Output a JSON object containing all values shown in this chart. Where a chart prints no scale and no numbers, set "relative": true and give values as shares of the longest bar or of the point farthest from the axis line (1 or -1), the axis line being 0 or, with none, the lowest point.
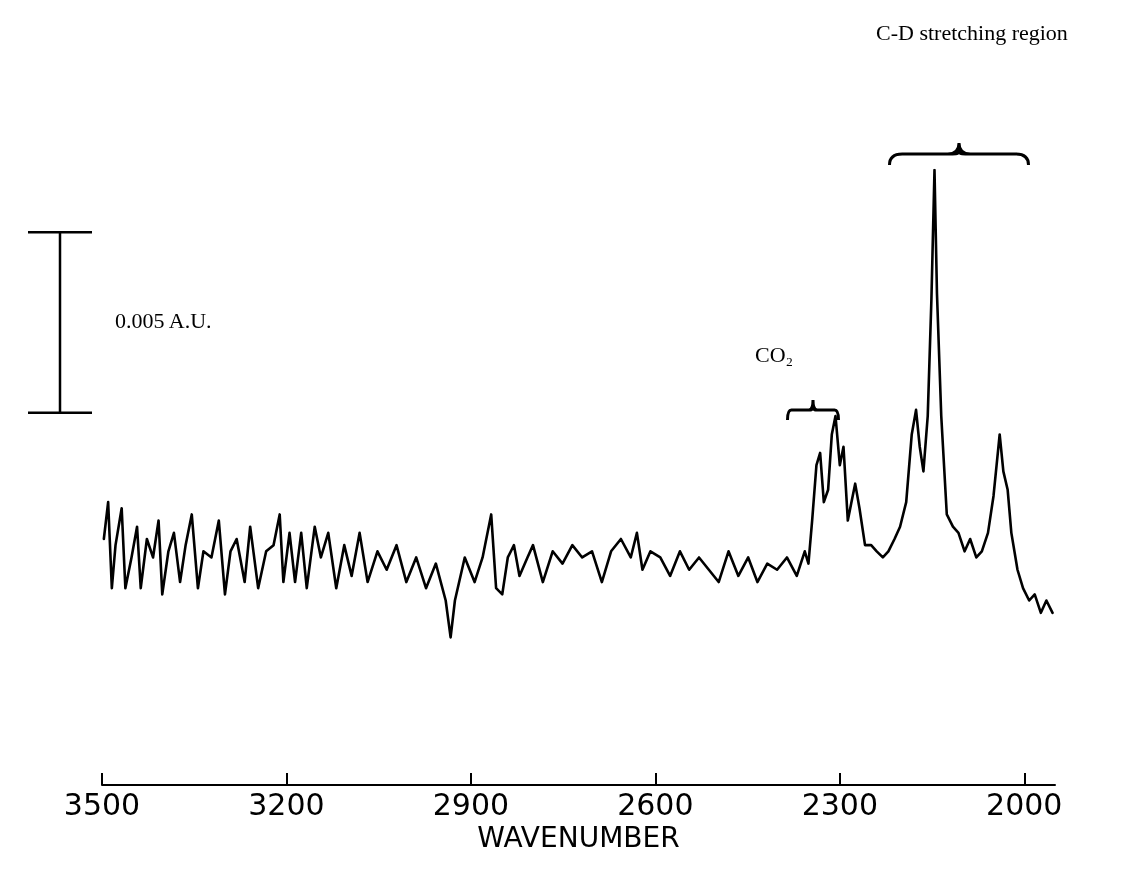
{
  "chart_data": {
    "type": "line",
    "relative": true,
    "xlabel": "WAVENUMBER",
    "xlim": [
      3500,
      1950
    ],
    "xticks": [
      3500,
      3200,
      2900,
      2600,
      2300,
      2000
    ],
    "grid": false,
    "marker": "none",
    "line_style": "solid",
    "annotations": [
      "0.005 A.U.",
      "CO₂",
      "C-D  stretching region"
    ],
    "series": [
      {
        "color": "#000000",
        "x": [
          3497,
          3490,
          3484,
          3478,
          3468,
          3462,
          3452,
          3443,
          3437,
          3427,
          3417,
          3408,
          3402,
          3392,
          3383,
          3373,
          3364,
          3354,
          3344,
          3335,
          3322,
          3310,
          3300,
          3291,
          3281,
          3268,
          3259,
          3246,
          3233,
          3221,
          3211,
          3205,
          3195,
          3186,
          3176,
          3167,
          3154,
          3144,
          3132,
          3119,
          3106,
          3094,
          3081,
          3068,
          3052,
          3037,
          3021,
          3005,
          2989,
          2973,
          2957,
          2941,
          2933,
          2926,
          2910,
          2894,
          2881,
          2875,
          2867,
          2859,
          2849,
          2840,
          2830,
          2821,
          2808,
          2799,
          2783,
          2767,
          2751,
          2735,
          2719,
          2703,
          2687,
          2672,
          2656,
          2640,
          2630,
          2621,
          2608,
          2592,
          2576,
          2560,
          2545,
          2529,
          2513,
          2497,
          2481,
          2465,
          2449,
          2434,
          2418,
          2402,
          2386,
          2370,
          2357,
          2351,
          2345,
          2338,
          2332,
          2326,
          2319,
          2313,
          2307,
          2300,
          2294,
          2287,
          2281,
          2275,
          2268,
          2259,
          2249,
          2240,
          2230,
          2221,
          2211,
          2202,
          2192,
          2183,
          2176,
          2170,
          2164,
          2157,
          2151,
          2146,
          2142,
          2135,
          2126,
          2116,
          2107,
          2097,
          2088,
          2078,
          2069,
          2059,
          2050,
          2043,
          2040,
          2034,
          2027,
          2021,
          2011,
          2002,
          1992,
          1983,
          1973,
          1964,
          1954
        ],
        "values": [
          0.4,
          0.46,
          0.32,
          0.39,
          0.45,
          0.32,
          0.37,
          0.42,
          0.32,
          0.4,
          0.37,
          0.43,
          0.31,
          0.38,
          0.41,
          0.33,
          0.39,
          0.44,
          0.32,
          0.38,
          0.37,
          0.43,
          0.31,
          0.38,
          0.4,
          0.33,
          0.42,
          0.32,
          0.38,
          0.39,
          0.44,
          0.33,
          0.41,
          0.33,
          0.41,
          0.32,
          0.42,
          0.37,
          0.41,
          0.32,
          0.39,
          0.34,
          0.41,
          0.33,
          0.38,
          0.35,
          0.39,
          0.33,
          0.37,
          0.32,
          0.36,
          0.3,
          0.24,
          0.3,
          0.37,
          0.33,
          0.37,
          0.4,
          0.44,
          0.32,
          0.31,
          0.37,
          0.39,
          0.34,
          0.37,
          0.39,
          0.33,
          0.38,
          0.36,
          0.39,
          0.37,
          0.38,
          0.33,
          0.38,
          0.4,
          0.37,
          0.41,
          0.35,
          0.38,
          0.37,
          0.34,
          0.38,
          0.35,
          0.37,
          0.35,
          0.33,
          0.38,
          0.34,
          0.37,
          0.33,
          0.36,
          0.35,
          0.37,
          0.34,
          0.38,
          0.36,
          0.43,
          0.52,
          0.54,
          0.46,
          0.48,
          0.57,
          0.6,
          0.52,
          0.55,
          0.43,
          0.46,
          0.49,
          0.45,
          0.39,
          0.39,
          0.38,
          0.37,
          0.38,
          0.4,
          0.42,
          0.46,
          0.57,
          0.61,
          0.55,
          0.51,
          0.6,
          0.79,
          1,
          0.8,
          0.6,
          0.44,
          0.42,
          0.41,
          0.38,
          0.4,
          0.37,
          0.38,
          0.41,
          0.47,
          0.54,
          0.57,
          0.51,
          0.48,
          0.41,
          0.35,
          0.32,
          0.3,
          0.31,
          0.28,
          0.3,
          0.28
        ]
      }
    ]
  }
}
